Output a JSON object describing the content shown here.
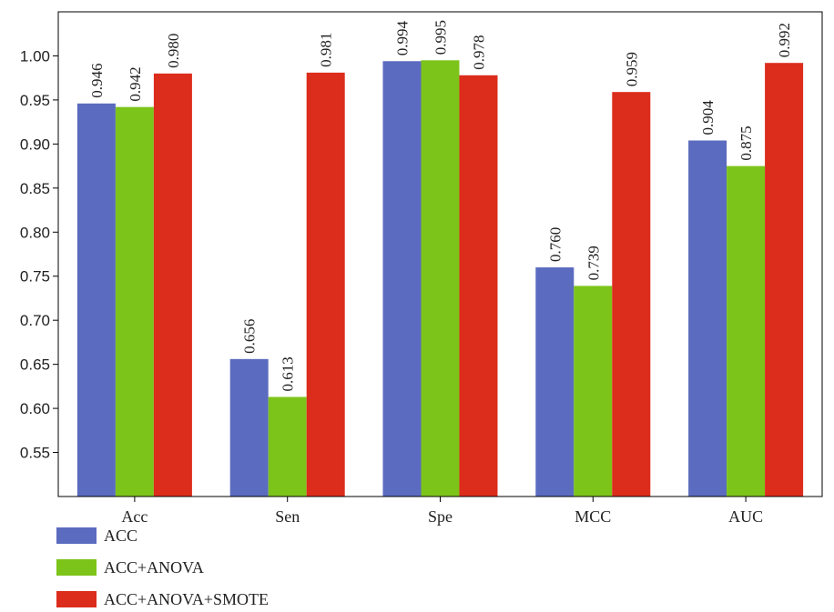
{
  "chart_data": {
    "type": "bar",
    "title": "",
    "xlabel": "",
    "ylabel": "",
    "categories": [
      "Acc",
      "Sen",
      "Spe",
      "MCC",
      "AUC"
    ],
    "series": [
      {
        "name": "ACC",
        "color": "#5B6BBF",
        "values": [
          0.946,
          0.656,
          0.994,
          0.76,
          0.904
        ],
        "labels": [
          "0.946",
          "0.656",
          "0.994",
          "0.760",
          "0.904"
        ]
      },
      {
        "name": "ACC+ANOVA",
        "color": "#7DC41A",
        "values": [
          0.942,
          0.613,
          0.995,
          0.739,
          0.875
        ],
        "labels": [
          "0.942",
          "0.613",
          "0.995",
          "0.739",
          "0.875"
        ]
      },
      {
        "name": "ACC+ANOVA+SMOTE",
        "color": "#DC2C1C",
        "values": [
          0.98,
          0.981,
          0.978,
          0.959,
          0.992
        ],
        "labels": [
          "0.980",
          "0.981",
          "0.978",
          "0.959",
          "0.992"
        ]
      }
    ],
    "ylim": [
      0.5,
      1.05
    ],
    "yticks": [
      "0.55",
      "0.60",
      "0.65",
      "0.70",
      "0.75",
      "0.80",
      "0.85",
      "0.90",
      "0.95",
      "1.00"
    ],
    "grid": false,
    "legend_position": "bottom-left"
  }
}
